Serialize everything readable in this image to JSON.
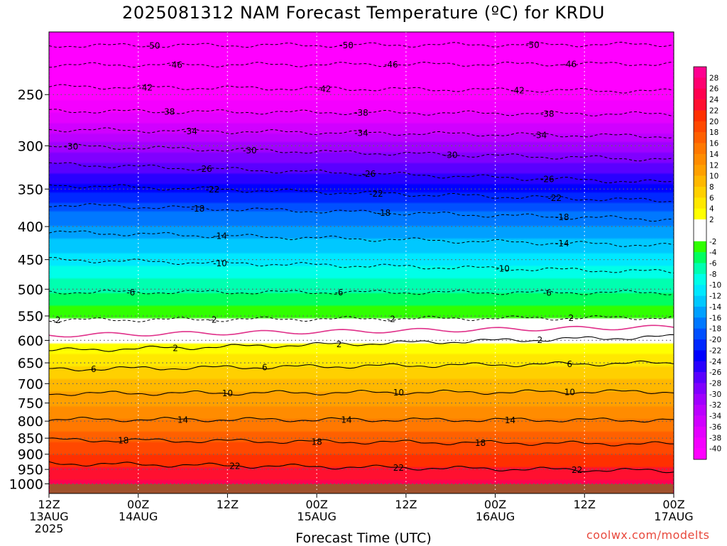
{
  "header": {
    "title": "2025081312 NAM Forecast Temperature (ºC) for KRDU"
  },
  "watermark": "coolwx.com/modelts",
  "chart_data": {
    "type": "heatmap",
    "title": "2025081312 NAM Forecast Temperature (ºC) for KRDU",
    "xlabel": "Forecast Time (UTC)",
    "ylabel": "",
    "x_unit": "hours since 12Z 13AUG 2025",
    "xlim": [
      0,
      84
    ],
    "y_scale": "log",
    "ylim": [
      1035,
      200
    ],
    "grid": true,
    "y_ticks": [
      250,
      300,
      350,
      400,
      450,
      500,
      550,
      600,
      650,
      700,
      750,
      800,
      850,
      900,
      950,
      1000
    ],
    "x_ticks": [
      {
        "hour": 0,
        "lines": [
          "12Z",
          "13AUG",
          "2025"
        ]
      },
      {
        "hour": 12,
        "lines": [
          "00Z",
          "14AUG"
        ]
      },
      {
        "hour": 24,
        "lines": [
          "12Z"
        ]
      },
      {
        "hour": 36,
        "lines": [
          "00Z",
          "15AUG"
        ]
      },
      {
        "hour": 48,
        "lines": [
          "12Z"
        ]
      },
      {
        "hour": 60,
        "lines": [
          "00Z",
          "16AUG"
        ]
      },
      {
        "hour": 72,
        "lines": [
          "12Z"
        ]
      },
      {
        "hour": 84,
        "lines": [
          "00Z",
          "17AUG"
        ]
      }
    ],
    "colorbar": {
      "min": -42,
      "max": 30,
      "step": 2,
      "labels": [
        28,
        26,
        24,
        22,
        20,
        18,
        16,
        14,
        12,
        10,
        8,
        6,
        4,
        2,
        -2,
        -4,
        -6,
        -8,
        -10,
        -12,
        -14,
        -16,
        -18,
        -20,
        -22,
        -24,
        -26,
        -28,
        -30,
        -32,
        -34,
        -36,
        -38,
        -40
      ],
      "colors": {
        "m42": "#ff00ff",
        "m40": "#f400ff",
        "m38": "#e400ff",
        "m36": "#d000ff",
        "m34": "#bb00ff",
        "m32": "#a000ff",
        "m30": "#8000ff",
        "m28": "#5a00ff",
        "m26": "#2a00ff",
        "m24": "#0000ff",
        "m22": "#0028ff",
        "m20": "#0050ff",
        "m18": "#0078ff",
        "m16": "#00a0ff",
        "m14": "#00c8ff",
        "m12": "#00e8ff",
        "m10": "#00ffe8",
        "m8": "#00ffb0",
        "m6": "#00ff60",
        "m4": "#30ff00",
        "m2": "#80ff00",
        "p0": "#ffffff",
        "p2": "#ffff00",
        "p4": "#ffe800",
        "p6": "#ffd000",
        "p8": "#ffb800",
        "p10": "#ffa000",
        "p12": "#ff8c00",
        "p14": "#ff7800",
        "p16": "#ff6000",
        "p18": "#ff4800",
        "p20": "#ff3000",
        "p22": "#ff1030",
        "p24": "#ff0050",
        "p26": "#ff0070",
        "p28": "#ff0090"
      }
    },
    "ground_color": "#a0522d",
    "freezing_line_color": "#e0308a",
    "contours": {
      "dashed": [
        -50,
        -46,
        -42,
        -38,
        -34,
        -30,
        -26,
        -22,
        -18,
        -14,
        -10,
        -6,
        -2
      ],
      "solid": [
        2,
        6,
        10,
        14,
        18,
        22
      ]
    },
    "series": [
      {
        "temperature": -50,
        "pressure_start": 210,
        "pressure_end": 209,
        "labels": [
          {
            "hour": 14,
            "text": "-50"
          },
          {
            "hour": 40,
            "text": "-50"
          },
          {
            "hour": 65,
            "text": "-50"
          }
        ]
      },
      {
        "temperature": -46,
        "pressure_start": 225,
        "pressure_end": 224,
        "labels": [
          {
            "hour": 17,
            "text": "-46"
          },
          {
            "hour": 46,
            "text": "-46"
          },
          {
            "hour": 70,
            "text": "-46"
          }
        ]
      },
      {
        "temperature": -42,
        "pressure_start": 243,
        "pressure_end": 247,
        "labels": [
          {
            "hour": 13,
            "text": "-42"
          },
          {
            "hour": 37,
            "text": "-42"
          },
          {
            "hour": 63,
            "text": "-42"
          }
        ]
      },
      {
        "temperature": -38,
        "pressure_start": 265,
        "pressure_end": 268,
        "labels": [
          {
            "hour": 16,
            "text": "-38"
          },
          {
            "hour": 42,
            "text": "-38"
          },
          {
            "hour": 67,
            "text": "-38"
          }
        ]
      },
      {
        "temperature": -34,
        "pressure_start": 283,
        "pressure_end": 290,
        "labels": [
          {
            "hour": 19,
            "text": "-34"
          },
          {
            "hour": 42,
            "text": "-34"
          },
          {
            "hour": 66,
            "text": "-34"
          }
        ]
      },
      {
        "temperature": -30,
        "pressure_start": 300,
        "pressure_end": 315,
        "labels": [
          {
            "hour": 3,
            "text": "-30"
          },
          {
            "hour": 27,
            "text": "-30"
          },
          {
            "hour": 54,
            "text": "-30"
          }
        ]
      },
      {
        "temperature": -26,
        "pressure_start": 320,
        "pressure_end": 342,
        "labels": [
          {
            "hour": 21,
            "text": "-26"
          },
          {
            "hour": 43,
            "text": "-26"
          },
          {
            "hour": 67,
            "text": "-26"
          }
        ]
      },
      {
        "temperature": -22,
        "pressure_start": 345,
        "pressure_end": 365,
        "labels": [
          {
            "hour": 22,
            "text": "-22"
          },
          {
            "hour": 44,
            "text": "-22"
          },
          {
            "hour": 68,
            "text": "-22"
          }
        ]
      },
      {
        "temperature": -18,
        "pressure_start": 370,
        "pressure_end": 390,
        "labels": [
          {
            "hour": 20,
            "text": "-18"
          },
          {
            "hour": 45,
            "text": "-18"
          },
          {
            "hour": 69,
            "text": "-18"
          }
        ]
      },
      {
        "temperature": -14,
        "pressure_start": 408,
        "pressure_end": 428,
        "labels": [
          {
            "hour": 23,
            "text": "-14"
          },
          {
            "hour": 69,
            "text": "-14"
          }
        ]
      },
      {
        "temperature": -10,
        "pressure_start": 450,
        "pressure_end": 470,
        "labels": [
          {
            "hour": 23,
            "text": "-10"
          },
          {
            "hour": 61,
            "text": "-10"
          }
        ]
      },
      {
        "temperature": -6,
        "pressure_start": 505,
        "pressure_end": 506,
        "labels": [
          {
            "hour": 11,
            "text": "-6"
          },
          {
            "hour": 39,
            "text": "-6"
          },
          {
            "hour": 67,
            "text": "-6"
          }
        ]
      },
      {
        "temperature": -2,
        "pressure_start": 558,
        "pressure_end": 553,
        "labels": [
          {
            "hour": 1,
            "text": "-2"
          },
          {
            "hour": 22,
            "text": "-2"
          },
          {
            "hour": 46,
            "text": "-2"
          },
          {
            "hour": 70,
            "text": "-2"
          }
        ]
      },
      {
        "temperature": 2,
        "pressure_start": 622,
        "pressure_end": 592,
        "labels": [
          {
            "hour": 17,
            "text": "2"
          },
          {
            "hour": 39,
            "text": "2"
          },
          {
            "hour": 66,
            "text": "2"
          }
        ]
      },
      {
        "temperature": 6,
        "pressure_start": 665,
        "pressure_end": 650,
        "labels": [
          {
            "hour": 6,
            "text": "6"
          },
          {
            "hour": 29,
            "text": "6"
          },
          {
            "hour": 70,
            "text": "6"
          }
        ]
      },
      {
        "temperature": 10,
        "pressure_start": 725,
        "pressure_end": 720,
        "labels": [
          {
            "hour": 24,
            "text": "10"
          },
          {
            "hour": 47,
            "text": "10"
          },
          {
            "hour": 70,
            "text": "10"
          }
        ]
      },
      {
        "temperature": 14,
        "pressure_start": 795,
        "pressure_end": 797,
        "labels": [
          {
            "hour": 18,
            "text": "14"
          },
          {
            "hour": 40,
            "text": "14"
          },
          {
            "hour": 62,
            "text": "14"
          }
        ]
      },
      {
        "temperature": 18,
        "pressure_start": 855,
        "pressure_end": 868,
        "labels": [
          {
            "hour": 10,
            "text": "18"
          },
          {
            "hour": 36,
            "text": "18"
          },
          {
            "hour": 58,
            "text": "18"
          }
        ]
      },
      {
        "temperature": 22,
        "pressure_start": 930,
        "pressure_end": 955,
        "labels": [
          {
            "hour": 25,
            "text": "22"
          },
          {
            "hour": 47,
            "text": "22"
          },
          {
            "hour": 71,
            "text": "22"
          }
        ]
      }
    ]
  }
}
